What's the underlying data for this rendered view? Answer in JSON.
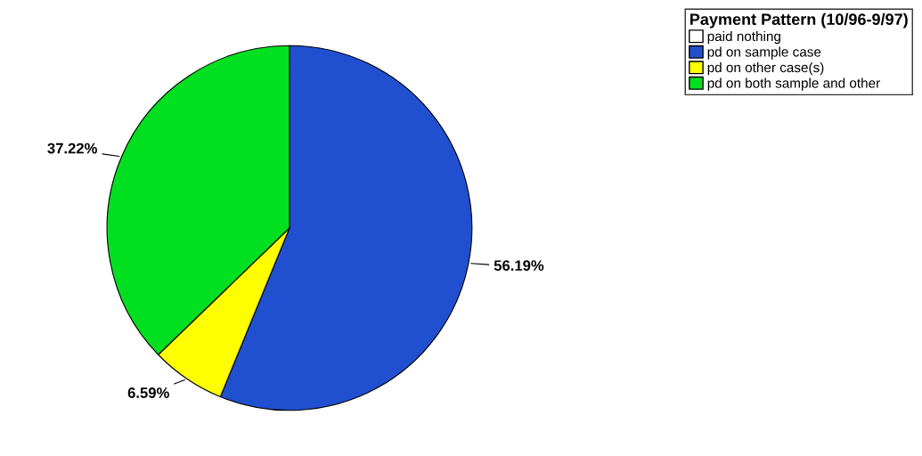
{
  "chart_data": {
    "type": "pie",
    "legend_title": "Payment Pattern (10/96-9/97)",
    "categories": [
      "paid nothing",
      "pd on sample case",
      "pd on other case(s)",
      "pd on both sample and other"
    ],
    "values": [
      0,
      56.19,
      6.59,
      37.22
    ],
    "colors": [
      "#ffffff",
      "#2050d0",
      "#ffff00",
      "#00e020"
    ],
    "value_labels": [
      null,
      "56.19%",
      "6.59%",
      "37.22%"
    ],
    "legend": "top right"
  }
}
